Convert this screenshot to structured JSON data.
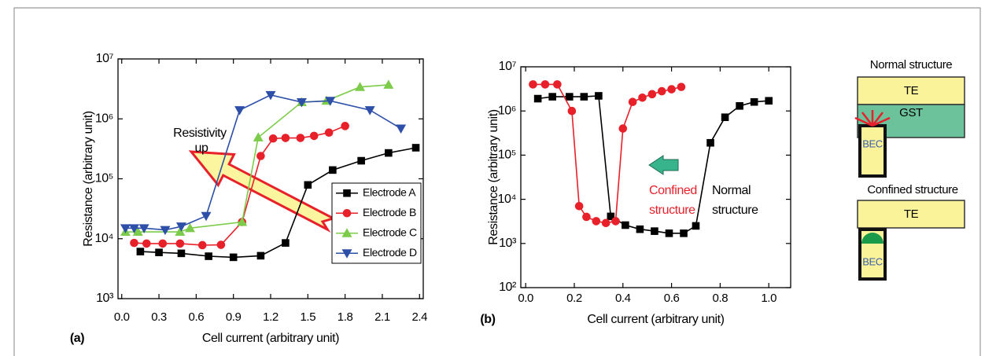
{
  "chart_data": [
    {
      "type": "line",
      "panel_label": "(a)",
      "x_label": "Cell current (arbitrary unit)",
      "y_label": "Resistance (arbitrary unit)",
      "annotation": "Resistivity up",
      "xlim": [
        -0.03,
        2.43
      ],
      "ylim": [
        1000,
        10000000
      ],
      "ylog": true,
      "xticks": [
        {
          "value": 0,
          "label": "0.0"
        },
        0.3,
        0.6,
        0.9,
        1.2,
        1.5,
        1.8,
        2.1,
        2.4
      ],
      "yticks": [
        {
          "value": 1000,
          "label": "10³"
        },
        {
          "value": 10000,
          "label": "10⁴"
        },
        {
          "value": 100000,
          "label": "10⁵"
        },
        {
          "value": 1000000,
          "label": "10⁶"
        },
        {
          "value": 10000000,
          "label": "10⁷"
        }
      ],
      "legend": "lower right",
      "series": [
        {
          "name": "Electrode A",
          "color": "#000000",
          "marker": "square",
          "x": [
            0.15,
            0.3,
            0.48,
            0.7,
            0.9,
            1.12,
            1.32,
            1.5,
            1.7,
            1.93,
            2.15,
            2.37
          ],
          "values": [
            6100,
            5900,
            5700,
            5100,
            4900,
            5200,
            8500,
            79000,
            140000,
            200000,
            270000,
            330000
          ]
        },
        {
          "name": "Electrode B",
          "color": "#e8202a",
          "marker": "circle",
          "x": [
            0.1,
            0.2,
            0.33,
            0.47,
            0.65,
            0.8,
            0.97,
            1.12,
            1.22,
            1.32,
            1.44,
            1.55,
            1.67,
            1.8
          ],
          "values": [
            8500,
            8300,
            8300,
            8300,
            7800,
            7900,
            19000,
            240000,
            470000,
            480000,
            480000,
            520000,
            590000,
            760000
          ]
        },
        {
          "name": "Electrode C",
          "color": "#7ccb4a",
          "marker": "triangle-up",
          "x": [
            0.03,
            0.13,
            0.47,
            0.55,
            0.97,
            1.1,
            1.45,
            1.65,
            1.92,
            2.15
          ],
          "values": [
            13000,
            13000,
            13000,
            15000,
            19000,
            490000,
            1900000,
            2000000,
            3400000,
            3700000
          ]
        },
        {
          "name": "Electrode D",
          "color": "#2d4fa8",
          "marker": "triangle-down",
          "x": [
            0.03,
            0.1,
            0.18,
            0.35,
            0.48,
            0.68,
            0.95,
            1.2,
            1.45,
            1.68,
            2.0,
            2.25
          ],
          "values": [
            15000,
            15000,
            15000,
            14000,
            16000,
            24000,
            1400000,
            2500000,
            1900000,
            2000000,
            1400000,
            690000
          ]
        }
      ]
    },
    {
      "type": "line",
      "panel_label": "(b)",
      "x_label": "Cell current (arbitrary unit)",
      "y_label": "Resistance (arbitrary unit)",
      "xlim": [
        -0.02,
        1.09
      ],
      "ylim": [
        100,
        10000000
      ],
      "ylog": true,
      "xticks": [
        {
          "value": 0,
          "label": "0.0"
        },
        0.2,
        0.4,
        0.6,
        0.8,
        {
          "value": 1,
          "label": "1.0"
        }
      ],
      "yticks": [
        {
          "value": 100,
          "label": "10²"
        },
        {
          "value": 1000,
          "label": "10³"
        },
        {
          "value": 10000,
          "label": "10⁴"
        },
        {
          "value": 100000,
          "label": "10⁵"
        },
        {
          "value": 1000000,
          "label": "10⁶"
        },
        {
          "value": 10000000,
          "label": "10⁷"
        }
      ],
      "series": [
        {
          "name": "Normal structure",
          "color": "#000000",
          "marker": "square",
          "x": [
            0.05,
            0.11,
            0.18,
            0.24,
            0.3,
            0.35,
            0.41,
            0.47,
            0.53,
            0.59,
            0.65,
            0.7,
            0.76,
            0.82,
            0.88,
            0.94,
            1.0
          ],
          "values": [
            1900000,
            2100000,
            2100000,
            2100000,
            2200000,
            4100,
            2600,
            2100,
            1900,
            1700,
            1700,
            2500,
            190000,
            720000,
            1300000,
            1600000,
            1700000
          ]
        },
        {
          "name": "Confined structure",
          "color": "#e8202a",
          "marker": "circle",
          "x": [
            0.03,
            0.08,
            0.13,
            0.19,
            0.22,
            0.25,
            0.29,
            0.33,
            0.37,
            0.4,
            0.44,
            0.48,
            0.52,
            0.56,
            0.6,
            0.64
          ],
          "values": [
            4000000,
            4000000,
            4000000,
            1000000,
            7000,
            4000,
            3200,
            2900,
            3200,
            400000,
            1600000,
            2000000,
            2400000,
            2800000,
            3100000,
            3500000
          ]
        }
      ]
    }
  ],
  "diagram": {
    "normal": {
      "title": "Normal structure",
      "top": "TE",
      "middle": "GST",
      "bottom": "BEC"
    },
    "confined": {
      "title": "Confined structure",
      "top": "TE",
      "bottom": "BEC"
    }
  }
}
